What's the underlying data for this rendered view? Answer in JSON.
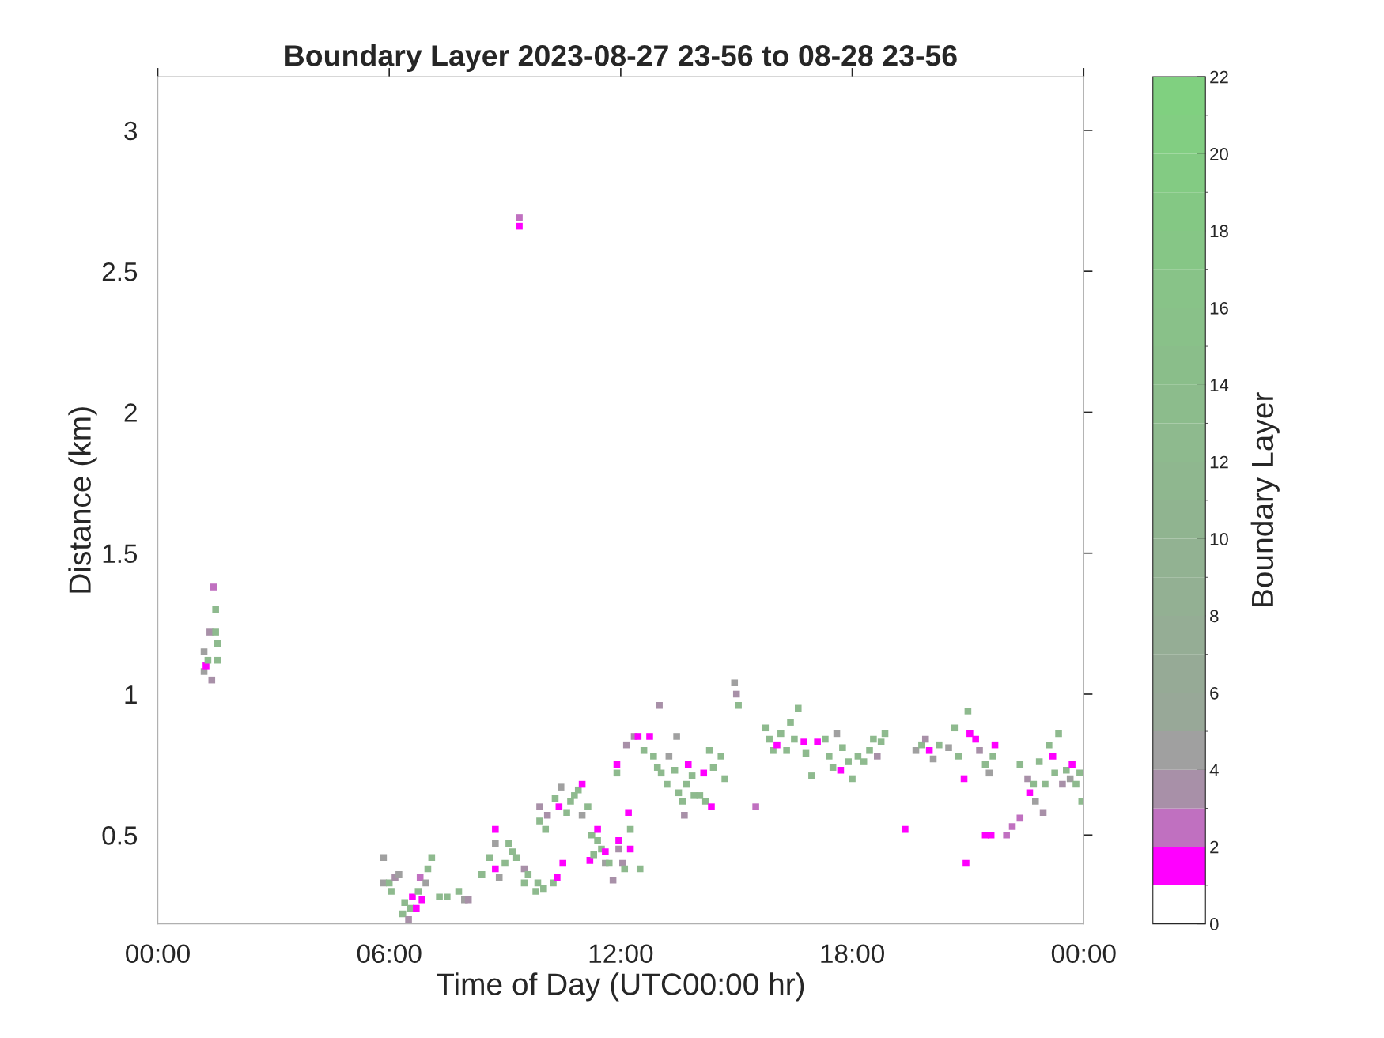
{
  "chart_data": {
    "type": "scatter",
    "title": "Boundary Layer 2023-08-27 23-56 to 08-28 23-56",
    "xlabel": "Time of Day (UTC00:00 hr)",
    "ylabel": "Distance (km)",
    "clabel": "Boundary Layer",
    "marker": "square",
    "grid": false,
    "xlim": [
      0,
      24
    ],
    "xticks": [
      {
        "value": 0,
        "label": "00:00"
      },
      {
        "value": 6,
        "label": "06:00"
      },
      {
        "value": 12,
        "label": "12:00"
      },
      {
        "value": 18,
        "label": "18:00"
      },
      {
        "value": 24,
        "label": "00:00"
      }
    ],
    "ylim": [
      0.185,
      3.19
    ],
    "yticks": [
      0.5,
      1,
      1.5,
      2,
      2.5,
      3
    ],
    "clim": [
      0,
      22
    ],
    "cticks": [
      0,
      2,
      4,
      6,
      8,
      10,
      12,
      14,
      16,
      18,
      20,
      22
    ],
    "x": [
      1.2,
      1.2,
      1.25,
      1.3,
      1.35,
      1.4,
      1.45,
      1.5,
      1.5,
      1.55,
      1.55,
      9.37,
      9.37,
      5.85,
      5.85,
      6.0,
      6.05,
      6.15,
      6.25,
      6.35,
      6.4,
      6.5,
      6.55,
      6.6,
      6.7,
      6.75,
      6.8,
      6.85,
      6.95,
      7.0,
      7.1,
      7.3,
      7.5,
      7.8,
      7.95,
      8.05,
      8.4,
      8.6,
      8.75,
      8.75,
      8.75,
      8.85,
      9.0,
      9.1,
      9.2,
      9.3,
      9.5,
      9.5,
      9.6,
      9.8,
      9.85,
      10.0,
      10.25,
      10.35,
      9.9,
      9.9,
      10.05,
      10.1,
      10.3,
      10.4,
      10.45,
      10.6,
      10.7,
      10.8,
      10.9,
      11.0,
      11.0,
      11.15,
      11.25,
      11.4,
      11.4,
      11.5,
      11.6,
      11.6,
      11.7,
      11.8,
      10.5,
      11.2,
      11.3,
      11.9,
      11.9,
      11.95,
      11.95,
      12.05,
      12.1,
      12.2,
      12.25,
      12.25,
      12.5,
      12.15,
      12.35,
      12.45,
      12.6,
      12.75,
      12.85,
      12.95,
      13.05,
      13.2,
      13.25,
      13.4,
      13.45,
      13.5,
      13.6,
      13.65,
      13.7,
      13.75,
      13.85,
      13.9,
      14.05,
      14.15,
      14.2,
      14.35,
      14.4,
      14.6,
      14.7,
      13.0,
      14.3,
      14.95,
      15.0,
      15.05,
      15.5,
      15.75,
      15.85,
      15.95,
      16.05,
      16.15,
      16.3,
      16.4,
      16.5,
      16.6,
      16.75,
      16.8,
      16.95,
      17.1,
      17.3,
      17.4,
      17.5,
      17.6,
      17.7,
      17.75,
      17.9,
      18.0,
      18.15,
      18.3,
      18.45,
      18.55,
      18.65,
      18.75,
      18.85,
      19.37,
      19.65,
      19.8,
      19.9,
      20.0,
      20.1,
      20.25,
      20.5,
      20.65,
      20.75,
      20.9,
      21.0,
      21.05,
      21.2,
      21.3,
      21.45,
      21.55,
      21.65,
      21.7,
      20.95,
      21.45,
      21.6,
      22.0,
      22.15,
      22.35,
      22.35,
      22.55,
      22.6,
      22.7,
      22.75,
      22.85,
      22.95,
      23.0,
      23.1,
      23.2,
      23.25,
      23.35,
      23.45,
      23.55,
      23.65,
      23.7,
      23.8,
      23.9,
      23.95
    ],
    "values": [
      1.15,
      1.08,
      1.1,
      1.12,
      1.22,
      1.05,
      1.38,
      1.3,
      1.22,
      1.18,
      1.12,
      2.66,
      2.69,
      0.42,
      0.33,
      0.33,
      0.3,
      0.35,
      0.36,
      0.22,
      0.26,
      0.2,
      0.24,
      0.28,
      0.24,
      0.3,
      0.35,
      0.27,
      0.33,
      0.38,
      0.42,
      0.28,
      0.28,
      0.3,
      0.27,
      0.27,
      0.36,
      0.42,
      0.47,
      0.52,
      0.38,
      0.35,
      0.4,
      0.47,
      0.44,
      0.42,
      0.33,
      0.38,
      0.36,
      0.3,
      0.33,
      0.31,
      0.33,
      0.35,
      0.55,
      0.6,
      0.52,
      0.57,
      0.63,
      0.6,
      0.67,
      0.58,
      0.62,
      0.64,
      0.66,
      0.68,
      0.57,
      0.6,
      0.5,
      0.48,
      0.52,
      0.45,
      0.4,
      0.44,
      0.4,
      0.34,
      0.4,
      0.41,
      0.43,
      0.75,
      0.72,
      0.48,
      0.45,
      0.4,
      0.38,
      0.58,
      0.52,
      0.45,
      0.38,
      0.82,
      0.85,
      0.85,
      0.8,
      0.85,
      0.78,
      0.74,
      0.72,
      0.68,
      0.78,
      0.73,
      0.85,
      0.65,
      0.62,
      0.57,
      0.68,
      0.75,
      0.71,
      0.64,
      0.64,
      0.72,
      0.62,
      0.6,
      0.74,
      0.78,
      0.7,
      0.96,
      0.8,
      1.04,
      1.0,
      0.96,
      0.6,
      0.88,
      0.84,
      0.8,
      0.82,
      0.86,
      0.8,
      0.9,
      0.84,
      0.95,
      0.83,
      0.79,
      0.71,
      0.83,
      0.84,
      0.78,
      0.74,
      0.86,
      0.73,
      0.81,
      0.76,
      0.7,
      0.78,
      0.76,
      0.8,
      0.84,
      0.78,
      0.83,
      0.86,
      0.52,
      0.8,
      0.82,
      0.84,
      0.8,
      0.77,
      0.82,
      0.81,
      0.88,
      0.78,
      0.7,
      0.94,
      0.86,
      0.84,
      0.8,
      0.75,
      0.72,
      0.78,
      0.82,
      0.4,
      0.5,
      0.5,
      0.5,
      0.53,
      0.56,
      0.75,
      0.7,
      0.65,
      0.68,
      0.62,
      0.76,
      0.58,
      0.68,
      0.82,
      0.78,
      0.72,
      0.86,
      0.68,
      0.73,
      0.7,
      0.75,
      0.68,
      0.72,
      0.62
    ],
    "cvalues": [
      4,
      4,
      1,
      12,
      3,
      3,
      2,
      12,
      12,
      12,
      12,
      1,
      2,
      4,
      4,
      12,
      12,
      3,
      4,
      12,
      12,
      3,
      12,
      1,
      1,
      12,
      2,
      1,
      4,
      12,
      12,
      12,
      12,
      12,
      4,
      3,
      12,
      12,
      4,
      1,
      1,
      4,
      12,
      12,
      12,
      12,
      12,
      3,
      12,
      12,
      12,
      12,
      12,
      1,
      12,
      3,
      12,
      3,
      12,
      1,
      4,
      12,
      12,
      12,
      12,
      1,
      4,
      12,
      12,
      12,
      1,
      12,
      4,
      1,
      12,
      3,
      1,
      1,
      12,
      1,
      12,
      1,
      3,
      3,
      12,
      1,
      12,
      1,
      12,
      3,
      3,
      1,
      12,
      1,
      12,
      12,
      12,
      12,
      4,
      12,
      4,
      12,
      12,
      3,
      12,
      1,
      12,
      12,
      12,
      1,
      12,
      1,
      12,
      12,
      12,
      3,
      12,
      4,
      3,
      12,
      2,
      12,
      12,
      12,
      1,
      12,
      12,
      12,
      12,
      12,
      1,
      12,
      12,
      1,
      12,
      12,
      12,
      4,
      1,
      12,
      12,
      12,
      12,
      12,
      12,
      12,
      3,
      12,
      12,
      1,
      4,
      12,
      3,
      1,
      4,
      12,
      4,
      12,
      12,
      1,
      12,
      1,
      1,
      3,
      12,
      4,
      12,
      1,
      1,
      1,
      1,
      2,
      2,
      2,
      12,
      3,
      1,
      12,
      4,
      12,
      3,
      12,
      12,
      1,
      12,
      12,
      3,
      12,
      4,
      1,
      12,
      12,
      12
    ]
  }
}
